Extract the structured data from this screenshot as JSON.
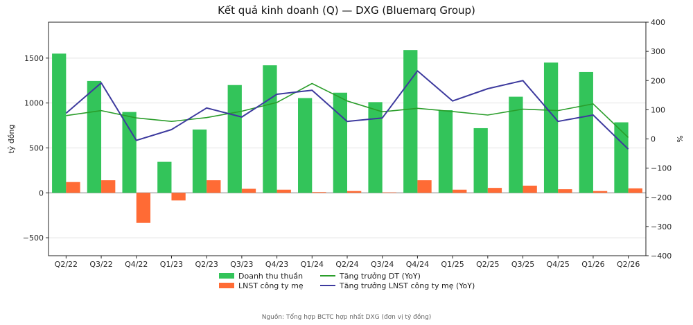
{
  "chart_data": {
    "type": "bar",
    "title": "Kết quả kinh doanh (Q) — DXG (Bluemarq Group)",
    "ylabel": "tỷ đồng",
    "y2label": "%",
    "categories": [
      "Q2/22",
      "Q3/22",
      "Q4/22",
      "Q1/23",
      "Q2/23",
      "Q3/23",
      "Q4/23",
      "Q1/24",
      "Q2/24",
      "Q3/24",
      "Q4/24",
      "Q1/25",
      "Q2/25",
      "Q3/25",
      "Q4/25",
      "Q1/26",
      "Q2/26"
    ],
    "ylim": [
      -700,
      1900
    ],
    "yticks": [
      -500,
      0,
      500,
      1000,
      1500
    ],
    "y2lim": [
      -400,
      400
    ],
    "y2ticks": [
      -400,
      -300,
      -200,
      -100,
      0,
      100,
      200,
      300,
      400
    ],
    "bar_series": [
      {
        "name": "Doanh thu thuần",
        "color": "#33c45a",
        "values": [
          1550,
          1245,
          900,
          345,
          705,
          1200,
          1420,
          1055,
          1115,
          1010,
          1590,
          920,
          720,
          1070,
          1450,
          1345,
          785
        ]
      },
      {
        "name": "LNST công ty mẹ",
        "color": "#ff6b35",
        "values": [
          120,
          140,
          -335,
          -85,
          140,
          45,
          35,
          8,
          20,
          5,
          140,
          35,
          55,
          80,
          40,
          20,
          50
        ]
      }
    ],
    "line_series": [
      {
        "name": "Tăng trưởng DT (YoY)",
        "color": "#2a9d2a",
        "values": [
          80,
          97,
          72,
          60,
          73,
          95,
          125,
          190,
          130,
          93,
          105,
          94,
          82,
          102,
          97,
          120,
          5
        ]
      },
      {
        "name": "Tăng trưởng LNST công ty mẹ (YoY)",
        "color": "#3d3a9e",
        "values": [
          88,
          192,
          -5,
          32,
          106,
          75,
          153,
          167,
          60,
          72,
          233,
          130,
          172,
          200,
          60,
          82,
          -35
        ]
      }
    ],
    "grid": true,
    "legend_position": "bottom-center"
  },
  "legend_labels": [
    "Doanh thu thuần",
    "LNST công ty mẹ",
    "Tăng trưởng DT (YoY)",
    "Tăng trưởng LNST công ty mẹ (YoY)"
  ],
  "source_note": "Nguồn: Tổng hợp BCTC hợp nhất DXG (đơn vị tỷ đồng)"
}
